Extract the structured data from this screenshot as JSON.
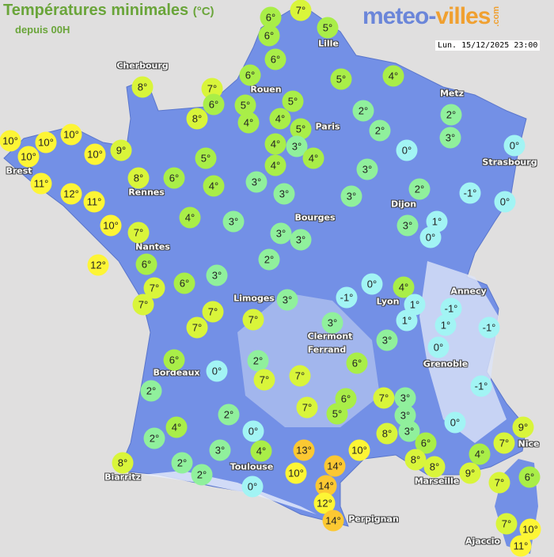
{
  "header": {
    "title": "Températures minimales",
    "unit": "(°C)",
    "subtitle": "depuis 00H"
  },
  "logo": {
    "part1": "meteo-",
    "part2": "villes",
    "suffix": ".com"
  },
  "timestamp": "Lun. 15/12/2025 23:00",
  "colors": {
    "sea": "#e0dfdf",
    "land": "#7390e6",
    "land_high": "#b7c6f0"
  },
  "color_scale": [
    {
      "min": -5,
      "max": 1,
      "color": "#a2f4f4"
    },
    {
      "min": 2,
      "max": 3,
      "color": "#90f09c"
    },
    {
      "min": 4,
      "max": 6,
      "color": "#a9ee48"
    },
    {
      "min": 7,
      "max": 9,
      "color": "#d9f53a"
    },
    {
      "min": 10,
      "max": 12,
      "color": "#fdf535"
    },
    {
      "min": 13,
      "max": 20,
      "color": "#fcc832"
    }
  ],
  "cities": [
    "Cherbourg",
    "Rouen",
    "Lille",
    "Metz",
    "Paris",
    "Strasbourg",
    "Brest",
    "Rennes",
    "Dijon",
    "Nantes",
    "Bourges",
    "Limoges",
    "Annecy",
    "Lyon",
    "Clermont",
    "Ferrand",
    "Grenoble",
    "Bordeaux",
    "Toulouse",
    "Nice",
    "Biarritz",
    "Marseille",
    "Perpignan",
    "Ajaccio"
  ],
  "temperatures": [
    6,
    7,
    6,
    5,
    6,
    6,
    5,
    4,
    8,
    7,
    6,
    8,
    5,
    4,
    5,
    4,
    2,
    5,
    2,
    4,
    3,
    4,
    2,
    3,
    0,
    0,
    10,
    10,
    10,
    10,
    10,
    9,
    8,
    6,
    5,
    4,
    3,
    4,
    3,
    3,
    3,
    2,
    -1,
    0,
    11,
    12,
    11,
    10,
    7,
    4,
    3,
    3,
    3,
    3,
    1,
    0,
    12,
    6,
    2,
    7,
    6,
    3,
    7,
    7,
    7,
    7,
    3,
    0,
    -1,
    4,
    1,
    1,
    -1,
    1,
    -1,
    3,
    3,
    0,
    6,
    6,
    0,
    2,
    7,
    7,
    2,
    2,
    0,
    4,
    2,
    3,
    4,
    2,
    2,
    0,
    8,
    7,
    6,
    5,
    7,
    3,
    3,
    3,
    8,
    -1,
    0,
    13,
    10,
    10,
    14,
    14,
    12,
    14,
    6,
    8,
    8,
    9,
    4,
    7,
    9,
    6,
    7,
    7,
    10,
    11
  ]
}
